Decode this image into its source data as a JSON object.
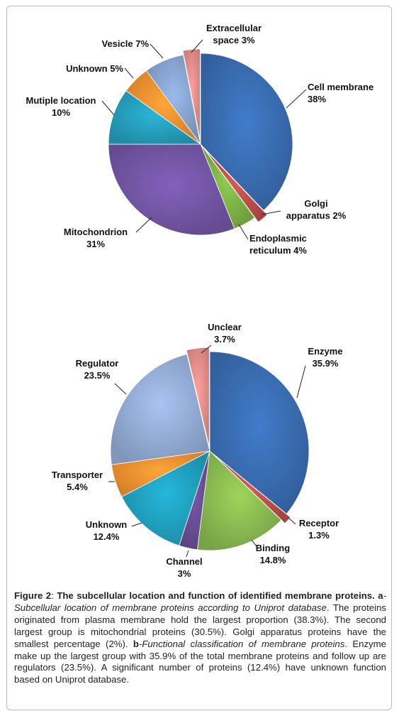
{
  "chart_data": [
    {
      "type": "pie",
      "slices": [
        {
          "name": "Cell membrane",
          "value": 38,
          "label_lines": [
            "Cell membrane",
            "38%"
          ],
          "color": "#3a6fb4"
        },
        {
          "name": "Golgi apparatus",
          "value": 2,
          "label_lines": [
            "Golgi",
            "apparatus 2%"
          ],
          "color": "#c0504d"
        },
        {
          "name": "Endoplasmic reticulum",
          "value": 4,
          "label_lines": [
            "Endoplasmic",
            "reticulum 4%"
          ],
          "color": "#7fb547"
        },
        {
          "name": "Mitochondrion",
          "value": 31,
          "label_lines": [
            "Mitochondrion",
            "31%"
          ],
          "color": "#7557a8"
        },
        {
          "name": "Mutiple location",
          "value": 10,
          "label_lines": [
            "Mutiple location",
            "10%"
          ],
          "color": "#26a2c0"
        },
        {
          "name": "Unknown",
          "value": 5,
          "label_lines": [
            "Unknown 5%"
          ],
          "color": "#f59332"
        },
        {
          "name": "Vesicle",
          "value": 7,
          "label_lines": [
            "Vesicle 7%"
          ],
          "color": "#8aa7d4"
        },
        {
          "name": "Extracellular space",
          "value": 3,
          "label_lines": [
            "Extracellular",
            "space 3%"
          ],
          "color": "#e8908d"
        }
      ]
    },
    {
      "type": "pie",
      "slices": [
        {
          "name": "Enzyme",
          "value": 35.9,
          "label_lines": [
            "Enzyme",
            "35.9%"
          ],
          "color": "#3a6fb4"
        },
        {
          "name": "Receptor",
          "value": 1.3,
          "label_lines": [
            "Receptor",
            "1.3%"
          ],
          "color": "#c0504d"
        },
        {
          "name": "Binding",
          "value": 14.8,
          "label_lines": [
            "Binding",
            "14.8%"
          ],
          "color": "#8dbd52"
        },
        {
          "name": "Channel",
          "value": 3,
          "label_lines": [
            "Channel",
            "3%"
          ],
          "color": "#6a4f96"
        },
        {
          "name": "Unknown",
          "value": 12.4,
          "label_lines": [
            "Unknown",
            "12.4%"
          ],
          "color": "#21a3c3"
        },
        {
          "name": "Transporter",
          "value": 5.4,
          "label_lines": [
            "Transporter",
            "5.4%"
          ],
          "color": "#f59332"
        },
        {
          "name": "Regulator",
          "value": 23.5,
          "label_lines": [
            "Regulator",
            "23.5%"
          ],
          "color": "#96afd8"
        },
        {
          "name": "Unclear",
          "value": 3.7,
          "label_lines": [
            "Unclear",
            "3.7%"
          ],
          "color": "#e8908d"
        }
      ]
    }
  ],
  "caption": {
    "figure_label": "Figure 2",
    "title_sep": ": ",
    "title": "The subcellular location and function of identified membrane proteins.",
    "a_marker": " a",
    "a_italic": "-Subcellular location of membrane proteins according to Uniprot database",
    "a_text": ". The proteins originated from plasma membrane hold the largest proportion (38.3%). The second largest group is mitochondrial proteins (30.5%). Golgi apparatus proteins have the smallest percentage (2%).",
    "b_marker": " b",
    "b_italic": "-Functional classification of membrane proteins",
    "b_text": ". Enzyme make up the largest group with 35.9% of the total membrane proteins and follow up are regulators (23.5%). A significant number of proteins (12.4%) have unknown function based on Uniprot database."
  }
}
